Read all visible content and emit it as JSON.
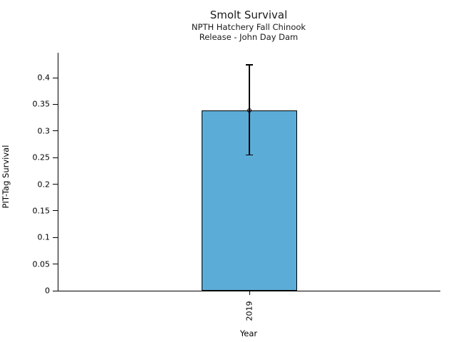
{
  "chart_data": {
    "type": "bar",
    "title": "Smolt Survival",
    "subtitle1": "NPTH Hatchery Fall Chinook",
    "subtitle2": "Release - John Day Dam",
    "xlabel": "Year",
    "ylabel": "PIT-Tag Survival",
    "categories": [
      "2019"
    ],
    "values": [
      0.339
    ],
    "error_low": [
      0.255
    ],
    "error_high": [
      0.424
    ],
    "yticks": [
      0,
      0.05,
      0.1,
      0.15,
      0.2,
      0.25,
      0.3,
      0.35,
      0.4
    ],
    "ytick_labels": [
      "0",
      "0.05",
      "0.1",
      "0.15",
      "0.2",
      "0.25",
      "0.3",
      "0.35",
      "0.4"
    ],
    "ylim": [
      0,
      0.447
    ],
    "grid": false,
    "legend": "none",
    "bar_color": "#5BACD6",
    "bar_edge_color": "#000000",
    "marker": "open-circle",
    "bar_width_fraction": 0.25,
    "bar_center_fraction": 0.5
  }
}
